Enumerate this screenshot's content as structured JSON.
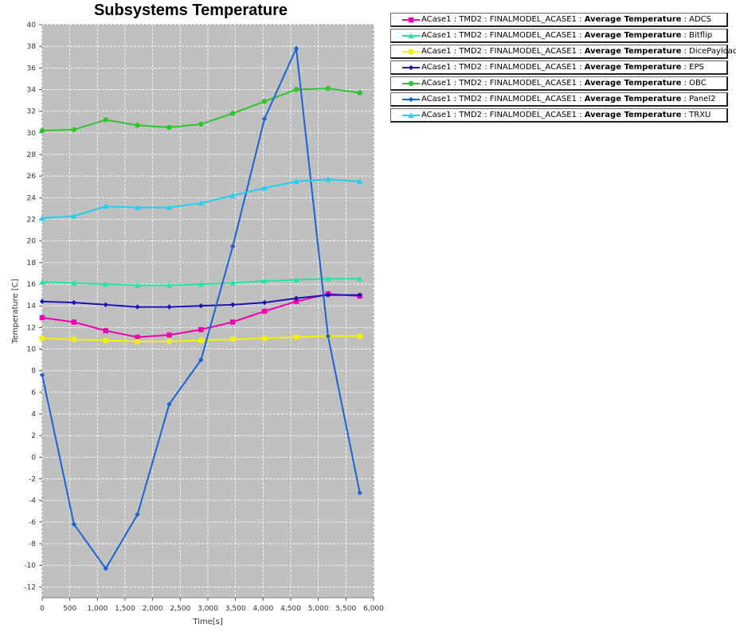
{
  "chart_data": {
    "type": "line",
    "title": "Subsystems Temperature",
    "xlabel": "Time[s]",
    "ylabel": "Temperature [C]",
    "xlim": [
      0,
      6000
    ],
    "ylim": [
      -13,
      40
    ],
    "xticks": [
      0,
      500,
      1000,
      1500,
      2000,
      2500,
      3000,
      3500,
      4000,
      4500,
      5000,
      5500,
      6000
    ],
    "xtick_labels": [
      "0",
      "500",
      "1,000",
      "1,500",
      "2,000",
      "2,500",
      "3,000",
      "3,500",
      "4,000",
      "4,500",
      "5,000",
      "5,500",
      "6,000"
    ],
    "yticks": [
      -12,
      -10,
      -8,
      -6,
      -4,
      -2,
      0,
      2,
      4,
      6,
      8,
      10,
      12,
      14,
      16,
      18,
      20,
      22,
      24,
      26,
      28,
      30,
      32,
      34,
      36,
      38,
      40
    ],
    "grid": true,
    "legend_position": "right",
    "background": "#c0c0c0",
    "x": [
      0,
      575,
      1150,
      1725,
      2300,
      2875,
      3450,
      4025,
      4600,
      5175,
      5750
    ],
    "series": [
      {
        "prefix": "ACase1 : TMD2 : FINALMODEL_ACASE1 : ",
        "bold": "Average Temperature",
        "suffix": " : ADCS",
        "color": "#ee00b0",
        "marker": "square",
        "values": [
          12.9,
          12.5,
          11.7,
          11.1,
          11.3,
          11.8,
          12.5,
          13.5,
          14.4,
          15.1,
          14.9
        ]
      },
      {
        "prefix": "ACase1 : TMD2 : FINALMODEL_ACASE1 : ",
        "bold": "Average Temperature",
        "suffix": " : Bitflip",
        "color": "#1fe6a8",
        "marker": "triangle",
        "values": [
          16.2,
          16.1,
          16.0,
          15.9,
          15.9,
          16.0,
          16.1,
          16.3,
          16.4,
          16.5,
          16.5
        ]
      },
      {
        "prefix": "ACase1 : TMD2 : FINALMODEL_ACASE1 : ",
        "bold": "Average Temperature",
        "suffix": " : DicePayload",
        "color": "#f2f200",
        "marker": "square",
        "values": [
          11.0,
          10.9,
          10.8,
          10.7,
          10.7,
          10.8,
          10.9,
          11.0,
          11.1,
          11.2,
          11.2
        ]
      },
      {
        "prefix": "ACase1 : TMD2 : FINALMODEL_ACASE1 : ",
        "bold": "Average Temperature",
        "suffix": " : EPS",
        "color": "#1a14b8",
        "marker": "diamond",
        "values": [
          14.4,
          14.3,
          14.1,
          13.9,
          13.9,
          14.0,
          14.1,
          14.3,
          14.7,
          15.0,
          15.0
        ]
      },
      {
        "prefix": "ACase1 : TMD2 : FINALMODEL_ACASE1 : ",
        "bold": "Average Temperature",
        "suffix": " : OBC",
        "color": "#2ec52e",
        "marker": "circle",
        "values": [
          30.2,
          30.3,
          31.2,
          30.7,
          30.5,
          30.8,
          31.8,
          32.9,
          34.0,
          34.1,
          33.7
        ]
      },
      {
        "prefix": "ACase1 : TMD2 : FINALMODEL_ACASE1 : ",
        "bold": "Average Temperature",
        "suffix": " : Panel2",
        "color": "#1a62d6",
        "marker": "diamond",
        "values": [
          7.6,
          -6.2,
          -10.3,
          -5.3,
          4.9,
          9.0,
          19.5,
          31.3,
          37.8,
          11.2,
          -3.3
        ]
      },
      {
        "prefix": "ACase1 : TMD2 : FINALMODEL_ACASE1 : ",
        "bold": "Average Temperature",
        "suffix": " : TRXU",
        "color": "#1fd0f0",
        "marker": "triangle",
        "values": [
          22.1,
          22.3,
          23.2,
          23.1,
          23.1,
          23.5,
          24.2,
          24.9,
          25.5,
          25.7,
          25.5
        ]
      }
    ]
  }
}
